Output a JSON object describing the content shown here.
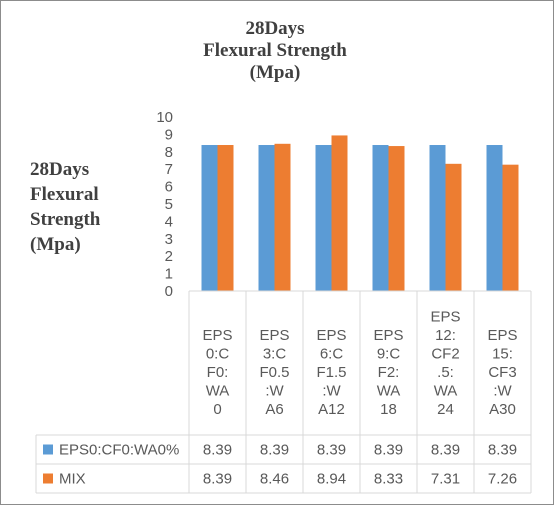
{
  "chart_data": {
    "type": "bar",
    "title": "28Days\nFlexural Strength\n(Mpa)",
    "title_lines": [
      "28Days",
      "Flexural Strength",
      "(Mpa)"
    ],
    "ylabel_lines": [
      "28Days",
      "Flexural",
      "Strength",
      "(Mpa)"
    ],
    "ylim": [
      0,
      10
    ],
    "yticks": [
      0,
      1,
      2,
      3,
      4,
      5,
      6,
      7,
      8,
      9,
      10
    ],
    "grid": false,
    "legend": "data-table",
    "categories": [
      [
        "EPS",
        "0:C",
        "F0:",
        "WA",
        "0"
      ],
      [
        "EPS",
        "3:C",
        "F0.5",
        ":W",
        "A6"
      ],
      [
        "EPS",
        "6:C",
        "F1.5",
        ":W",
        "A12"
      ],
      [
        "EPS",
        "9:C",
        "F2:",
        "WA",
        "18"
      ],
      [
        "EPS",
        "12:",
        "CF2",
        ".5:",
        "WA",
        "24"
      ],
      [
        "EPS",
        "15:",
        "CF3",
        ":W",
        "A30"
      ]
    ],
    "series": [
      {
        "name": "EPS0:CF0:WA0%",
        "color": "#5b9bd5",
        "values": [
          8.39,
          8.39,
          8.39,
          8.39,
          8.39,
          8.39
        ],
        "labels": [
          "8.39",
          "8.39",
          "8.39",
          "8.39",
          "8.39",
          "8.39"
        ]
      },
      {
        "name": "MIX",
        "color": "#ed7d31",
        "values": [
          8.39,
          8.46,
          8.94,
          8.33,
          7.31,
          7.26
        ],
        "labels": [
          "8.39",
          "8.46",
          "8.94",
          "8.33",
          "7.31",
          "7.26"
        ]
      }
    ]
  }
}
